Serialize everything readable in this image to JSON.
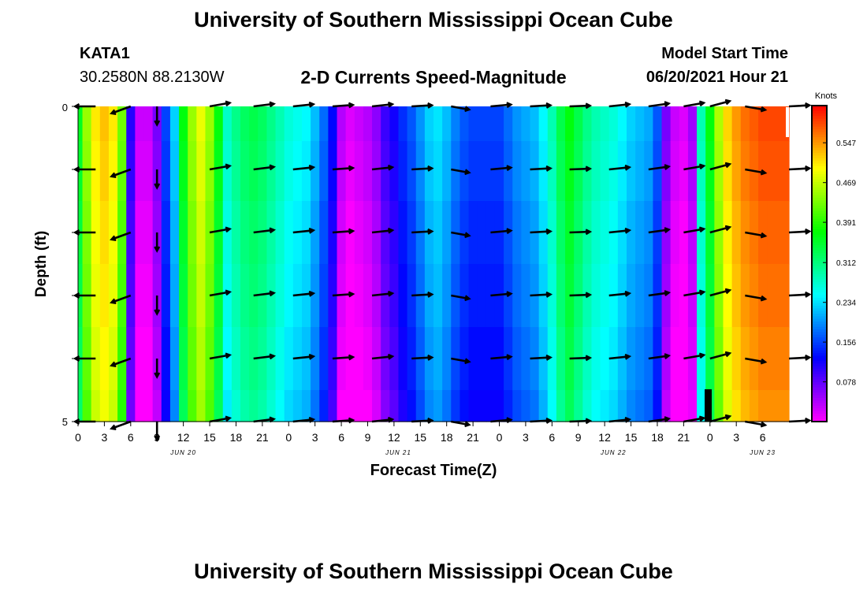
{
  "header": {
    "title": "University of Southern Mississippi Ocean Cube",
    "station_id": "KATA1",
    "location": "30.2580N  88.2130W",
    "subtitle": "2-D Currents Speed-Magnitude",
    "model_label": "Model Start Time",
    "model_time": "06/20/2021 Hour 21"
  },
  "footer": {
    "title": "University of Southern Mississippi Ocean Cube"
  },
  "chart_data": {
    "type": "heatmap",
    "title": "2-D Currents Speed-Magnitude",
    "xlabel": "Forecast Time(Z)",
    "ylabel": "Depth (ft)",
    "x_ticks": [
      "0",
      "3",
      "6",
      "9",
      "12",
      "15",
      "18",
      "21",
      "0",
      "3",
      "6",
      "9",
      "12",
      "15",
      "18",
      "21",
      "0",
      "3",
      "6",
      "9",
      "12",
      "15",
      "18",
      "21",
      "0",
      "3",
      "6"
    ],
    "date_labels": [
      {
        "label": "JUN 20",
        "hours": 12
      },
      {
        "label": "JUN 21",
        "hours": 36.5
      },
      {
        "label": "JUN 22",
        "hours": 61
      },
      {
        "label": "JUN 23",
        "hours": 78
      }
    ],
    "x_range_hours": [
      0,
      81
    ],
    "y_ticks": [
      "0",
      "5"
    ],
    "y_range_ft": [
      0,
      5
    ],
    "colorbar": {
      "unit": "Knots",
      "ticks": [
        "0.547",
        "0.469",
        "0.391",
        "0.312",
        "0.234",
        "0.156",
        "0.078"
      ],
      "range": [
        0.0,
        0.62
      ]
    },
    "speed_by_hour": [
      0.35,
      0.44,
      0.5,
      0.52,
      0.5,
      0.42,
      0.1,
      0.02,
      0.02,
      0.06,
      0.15,
      0.22,
      0.36,
      0.44,
      0.48,
      0.44,
      0.36,
      0.27,
      0.3,
      0.32,
      0.33,
      0.32,
      0.3,
      0.28,
      0.26,
      0.25,
      0.24,
      0.21,
      0.17,
      0.12,
      0.03,
      0.01,
      0.02,
      0.03,
      0.05,
      0.09,
      0.11,
      0.14,
      0.16,
      0.19,
      0.22,
      0.23,
      0.21,
      0.18,
      0.16,
      0.15,
      0.15,
      0.15,
      0.15,
      0.17,
      0.19,
      0.2,
      0.21,
      0.24,
      0.28,
      0.33,
      0.36,
      0.33,
      0.3,
      0.28,
      0.27,
      0.26,
      0.24,
      0.22,
      0.21,
      0.2,
      0.16,
      0.06,
      0.02,
      0.01,
      0.04,
      0.28,
      0.36,
      0.45,
      0.51,
      0.54,
      0.56,
      0.57,
      0.58,
      0.58,
      0.58,
      0.58
    ],
    "depth_rows_ft": [
      0,
      1,
      2,
      3,
      4,
      5
    ],
    "vector_times_hours": [
      2,
      6,
      9,
      15,
      20,
      24.5,
      29,
      33.5,
      38,
      42.5,
      47,
      51.5,
      56,
      60.5,
      65,
      69,
      72,
      76,
      81
    ],
    "vector_angles_deg": [
      180,
      200,
      270,
      10,
      7,
      6,
      4,
      6,
      3,
      350,
      5,
      3,
      2,
      6,
      8,
      10,
      15,
      350,
      3
    ],
    "vector_lengths": [
      1,
      1,
      0.9,
      1,
      1,
      1,
      1,
      1,
      1,
      0.9,
      1,
      1,
      1,
      1,
      1,
      1,
      1,
      1,
      1
    ]
  }
}
